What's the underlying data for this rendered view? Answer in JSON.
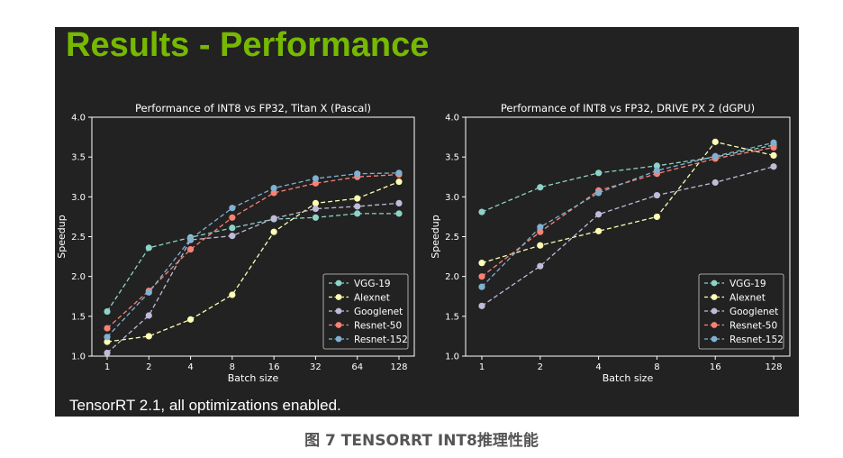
{
  "slide": {
    "title": "Results - Performance",
    "footer": "TensorRT 2.1, all optimizations enabled.",
    "title_color": "#76b900",
    "background_color": "#222222"
  },
  "caption": "图 7 TENSORRT INT8推理性能",
  "series_colors": {
    "VGG-19": "#8dd3c7",
    "Alexnet": "#feffb3",
    "Googlenet": "#bfbbd9",
    "Resnet-50": "#fa8174",
    "Resnet-152": "#81b1d2"
  },
  "chart_data": [
    {
      "type": "line",
      "title": "Performance of INT8 vs FP32, Titan X (Pascal)",
      "xlabel": "Batch size",
      "ylabel": "Speedup",
      "categories": [
        "1",
        "2",
        "4",
        "8",
        "16",
        "32",
        "64",
        "128"
      ],
      "ylim": [
        1.0,
        4.0
      ],
      "yticks": [
        "1.0",
        "1.5",
        "2.0",
        "2.5",
        "3.0",
        "3.5",
        "4.0"
      ],
      "legend_position": "lower-right",
      "series": [
        {
          "name": "VGG-19",
          "values": [
            1.56,
            2.36,
            2.49,
            2.61,
            2.72,
            2.74,
            2.79,
            2.79
          ]
        },
        {
          "name": "Alexnet",
          "values": [
            1.18,
            1.25,
            1.46,
            1.77,
            2.56,
            2.92,
            2.98,
            3.19
          ]
        },
        {
          "name": "Googlenet",
          "values": [
            1.04,
            1.51,
            2.46,
            2.51,
            2.73,
            2.85,
            2.88,
            2.92
          ]
        },
        {
          "name": "Resnet-50",
          "values": [
            1.35,
            1.82,
            2.34,
            2.74,
            3.05,
            3.17,
            3.25,
            3.28
          ]
        },
        {
          "name": "Resnet-152",
          "values": [
            1.24,
            1.8,
            2.47,
            2.86,
            3.11,
            3.23,
            3.29,
            3.3
          ]
        }
      ]
    },
    {
      "type": "line",
      "title": "Performance of INT8 vs FP32, DRIVE PX 2 (dGPU)",
      "xlabel": "Batch size",
      "ylabel": "Speedup",
      "categories": [
        "1",
        "2",
        "4",
        "8",
        "16",
        "128"
      ],
      "ylim": [
        1.0,
        4.0
      ],
      "yticks": [
        "1.0",
        "1.5",
        "2.0",
        "2.5",
        "3.0",
        "3.5",
        "4.0"
      ],
      "legend_position": "lower-right",
      "series": [
        {
          "name": "VGG-19",
          "values": [
            2.81,
            3.12,
            3.3,
            3.39,
            3.5,
            3.65
          ]
        },
        {
          "name": "Alexnet",
          "values": [
            2.17,
            2.39,
            2.57,
            2.75,
            3.69,
            3.52
          ]
        },
        {
          "name": "Googlenet",
          "values": [
            1.63,
            2.13,
            2.78,
            3.02,
            3.18,
            3.38
          ]
        },
        {
          "name": "Resnet-50",
          "values": [
            2.0,
            2.56,
            3.08,
            3.29,
            3.48,
            3.62
          ]
        },
        {
          "name": "Resnet-152",
          "values": [
            1.87,
            2.62,
            3.05,
            3.33,
            3.51,
            3.68
          ]
        }
      ]
    }
  ]
}
